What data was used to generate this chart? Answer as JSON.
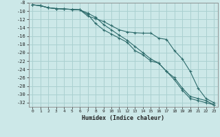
{
  "xlabel": "Humidex (Indice chaleur)",
  "bg_color": "#cce8e8",
  "grid_color": "#aad0d0",
  "line_color": "#2d6b6b",
  "x": [
    0,
    1,
    2,
    3,
    4,
    5,
    6,
    7,
    8,
    9,
    10,
    11,
    12,
    13,
    14,
    15,
    16,
    17,
    18,
    19,
    20,
    21,
    22,
    23
  ],
  "line1": [
    -8.5,
    -8.7,
    -9.2,
    -9.4,
    -9.5,
    -9.6,
    -9.7,
    -10.5,
    -11.5,
    -13.2,
    -14.5,
    -15.8,
    -17.0,
    -18.5,
    -20.0,
    -21.5,
    -22.5,
    -24.5,
    -26.0,
    -28.5,
    -30.5,
    -31.0,
    -31.5,
    -32.5
  ],
  "line2": [
    -8.5,
    -8.7,
    -9.2,
    -9.4,
    -9.5,
    -9.6,
    -9.7,
    -10.8,
    -13.0,
    -14.5,
    -15.5,
    -16.5,
    -17.5,
    -19.5,
    -20.5,
    -22.0,
    -22.5,
    -24.5,
    -26.5,
    -29.0,
    -31.0,
    -31.5,
    -32.0,
    -32.5
  ],
  "line3": [
    -8.5,
    -8.7,
    -9.2,
    -9.4,
    -9.5,
    -9.6,
    -9.7,
    -11.2,
    -11.8,
    -12.5,
    -13.5,
    -14.5,
    -15.0,
    -15.2,
    -15.3,
    -15.3,
    -16.5,
    -16.8,
    -19.5,
    -21.5,
    -24.5,
    -28.5,
    -31.0,
    -32.0
  ],
  "ylim": [
    -33,
    -8
  ],
  "xlim": [
    -0.5,
    23.5
  ],
  "yticks": [
    -32,
    -30,
    -28,
    -26,
    -24,
    -22,
    -20,
    -18,
    -16,
    -14,
    -12,
    -10,
    -8
  ],
  "xticks": [
    0,
    1,
    2,
    3,
    4,
    5,
    6,
    7,
    8,
    9,
    10,
    11,
    12,
    13,
    14,
    15,
    16,
    17,
    18,
    19,
    20,
    21,
    22,
    23
  ]
}
